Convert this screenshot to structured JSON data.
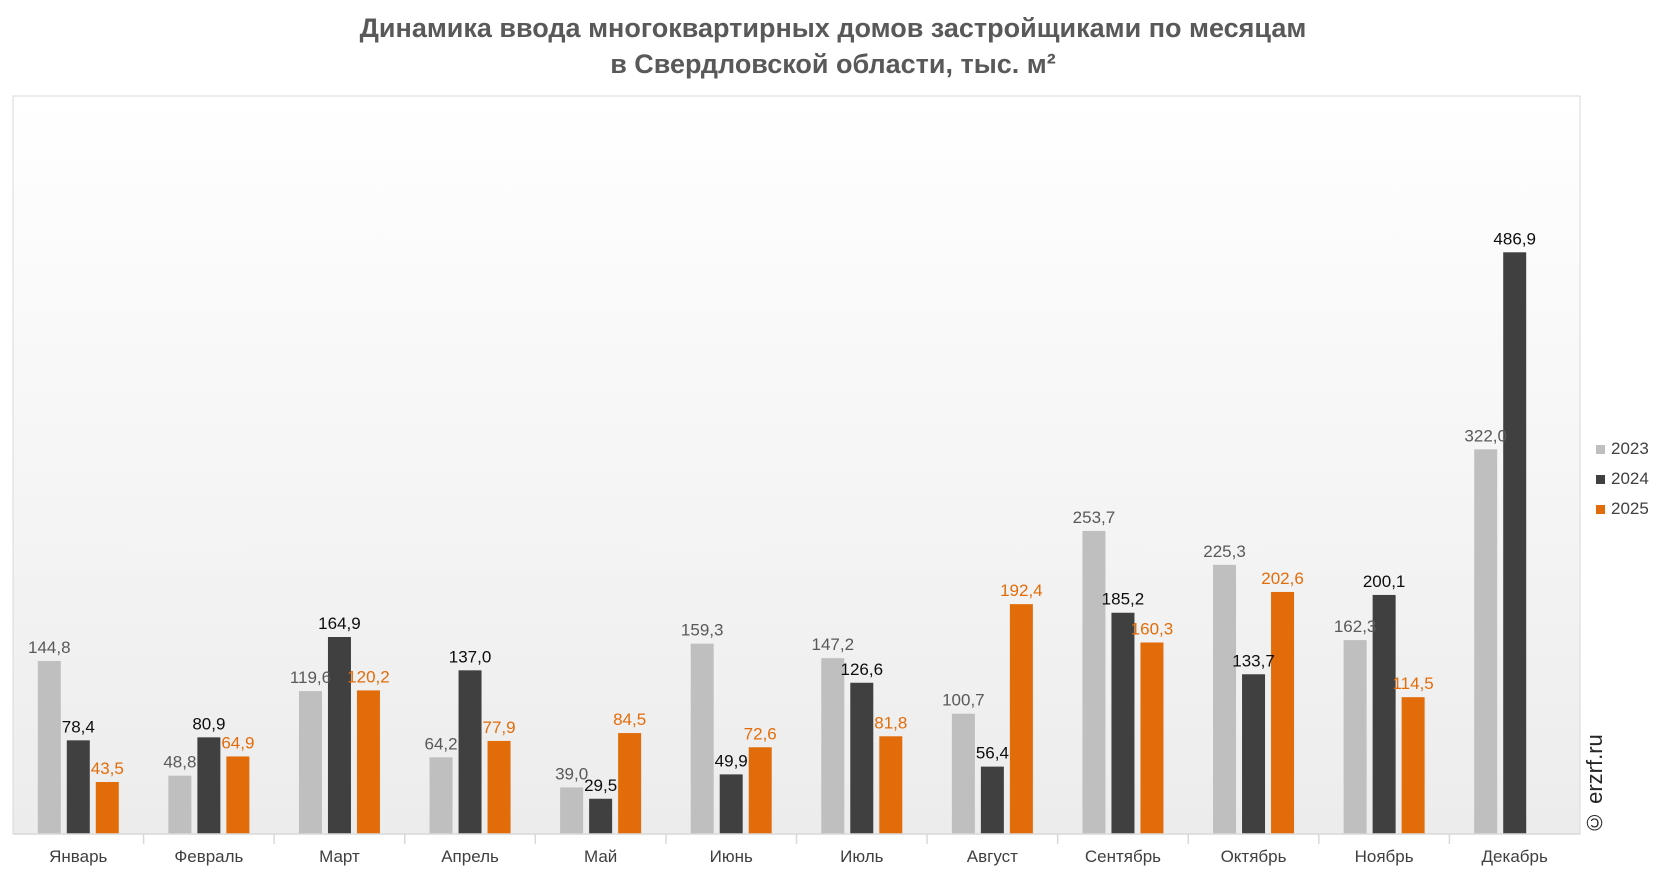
{
  "title_lines": [
    "Динамика ввода многоквартирных домов застройщиками по месяцам",
    "в Свердловской области, тыс. м²"
  ],
  "watermark": "© erzrf.ru",
  "colors": {
    "s2023": "#bfbfbf",
    "s2024": "#404040",
    "s2025": "#e36c0a"
  },
  "chart_data": {
    "type": "bar",
    "title": "Динамика ввода многоквартирных домов застройщиками по месяцам в Свердловской области, тыс. м²",
    "categories": [
      "Январь",
      "Февраль",
      "Март",
      "Апрель",
      "Май",
      "Июнь",
      "Июль",
      "Август",
      "Сентябрь",
      "Октябрь",
      "Ноябрь",
      "Декабрь"
    ],
    "series": [
      {
        "name": "2023",
        "color": "#bfbfbf",
        "values": [
          144.8,
          48.8,
          119.6,
          64.2,
          39.0,
          159.3,
          147.2,
          100.7,
          253.7,
          225.3,
          162.3,
          322.0
        ],
        "labels": [
          "144,8",
          "48,8",
          "119,6",
          "64,2",
          "39,0",
          "159,3",
          "147,2",
          "100,7",
          "253,7",
          "225,3",
          "162,3",
          "322,0"
        ]
      },
      {
        "name": "2024",
        "color": "#404040",
        "values": [
          78.4,
          80.9,
          164.9,
          137.0,
          29.5,
          49.9,
          126.6,
          56.4,
          185.2,
          133.7,
          200.1,
          486.9
        ],
        "labels": [
          "78,4",
          "80,9",
          "164,9",
          "137,0",
          "29,5",
          "49,9",
          "126,6",
          "56,4",
          "185,2",
          "133,7",
          "200,1",
          "486,9"
        ]
      },
      {
        "name": "2025",
        "color": "#e36c0a",
        "values": [
          43.5,
          64.9,
          120.2,
          77.9,
          84.5,
          72.6,
          81.8,
          192.4,
          160.3,
          202.6,
          114.5,
          null
        ],
        "labels": [
          "43,5",
          "64,9",
          "120,2",
          "77,9",
          "84,5",
          "72,6",
          "81,8",
          "192,4",
          "160,3",
          "202,6",
          "114,5",
          ""
        ]
      }
    ],
    "ylim": [
      0,
      600
    ],
    "grid": false,
    "legend_position": "right"
  }
}
